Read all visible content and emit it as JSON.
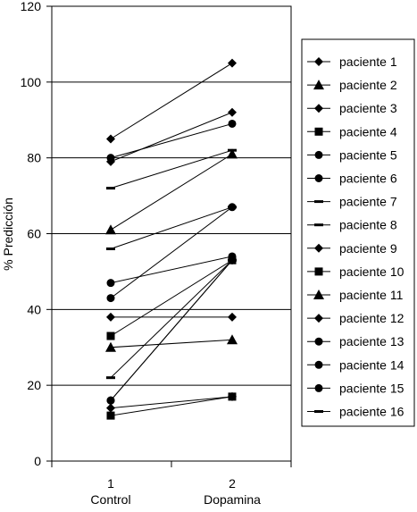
{
  "chart_data": {
    "type": "line",
    "ylabel": "% Predicción",
    "ylim": [
      0,
      120
    ],
    "yticks": [
      0,
      20,
      40,
      60,
      80,
      100,
      120
    ],
    "grid": "horizontal",
    "x": [
      1,
      2
    ],
    "categories": [
      "Control",
      "Dopamina"
    ],
    "legend_position": "right",
    "series": [
      {
        "name": "paciente 1",
        "marker": "diamond",
        "values": [
          85,
          105
        ]
      },
      {
        "name": "paciente 2",
        "marker": "triangle",
        "values": [
          30,
          32
        ]
      },
      {
        "name": "paciente 3",
        "marker": "diamond",
        "values": [
          79,
          92
        ]
      },
      {
        "name": "paciente 4",
        "marker": "square",
        "values": [
          33,
          53
        ]
      },
      {
        "name": "paciente 5",
        "marker": "circle",
        "values": [
          80,
          89
        ]
      },
      {
        "name": "paciente 6",
        "marker": "circle",
        "values": [
          47,
          54
        ]
      },
      {
        "name": "paciente 7",
        "marker": "dash",
        "values": [
          56,
          67
        ]
      },
      {
        "name": "paciente 8",
        "marker": "dash",
        "values": [
          72,
          82
        ]
      },
      {
        "name": "paciente 9",
        "marker": "diamond",
        "values": [
          38,
          38
        ]
      },
      {
        "name": "paciente 10",
        "marker": "square",
        "values": [
          12,
          17
        ]
      },
      {
        "name": "paciente 11",
        "marker": "triangle",
        "values": [
          61,
          81
        ]
      },
      {
        "name": "paciente 12",
        "marker": "diamond",
        "values": [
          14,
          17
        ]
      },
      {
        "name": "paciente 13",
        "marker": "circle",
        "values": [
          43,
          67
        ]
      },
      {
        "name": "paciente 14",
        "marker": "circle",
        "values": [
          16,
          53
        ]
      },
      {
        "name": "paciente 15",
        "marker": "circle",
        "values": [
          16,
          53
        ]
      },
      {
        "name": "paciente 16",
        "marker": "dash",
        "values": [
          22,
          53
        ]
      }
    ]
  }
}
